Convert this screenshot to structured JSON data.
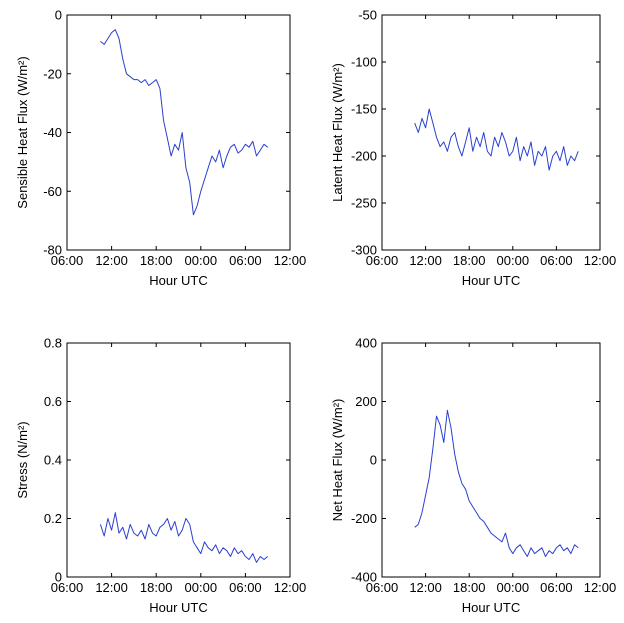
{
  "colors": {
    "series": "#2a40d0",
    "axes": "#000000",
    "background": "#ffffff"
  },
  "chart_data": [
    {
      "type": "line",
      "xlabel": "Hour UTC",
      "ylabel": "Sensible Heat Flux (W/m²)",
      "x_unit": "hours since 06:00 of day 1",
      "xlim": [
        0,
        30
      ],
      "ylim": [
        -80,
        0
      ],
      "xticks": [
        0,
        6,
        12,
        18,
        24,
        30
      ],
      "xtick_labels": [
        "06:00",
        "12:00",
        "18:00",
        "00:00",
        "06:00",
        "12:00"
      ],
      "yticks": [
        0,
        -20,
        -40,
        -60,
        -80
      ],
      "ytick_labels": [
        "0",
        "-20",
        "-40",
        "-60",
        "-80"
      ],
      "grid": false,
      "series": [
        {
          "x": [
            4.5,
            5.0,
            5.5,
            6.0,
            6.5,
            7.0,
            7.5,
            8.0,
            8.5,
            9.0,
            9.5,
            10.0,
            10.5,
            11.0,
            11.5,
            12.0,
            12.5,
            13.0,
            13.5,
            14.0,
            14.5,
            15.0,
            15.5,
            16.0,
            16.5,
            17.0,
            17.5,
            18.0,
            18.5,
            19.0,
            19.5,
            20.0,
            20.5,
            21.0,
            21.5,
            22.0,
            22.5,
            23.0,
            23.5,
            24.0,
            24.5,
            25.0,
            25.5,
            26.0,
            26.5,
            27.0
          ],
          "y": [
            -9,
            -10,
            -8,
            -6,
            -5,
            -8,
            -15,
            -20,
            -21,
            -22,
            -22,
            -23,
            -22,
            -24,
            -23,
            -22,
            -25,
            -36,
            -42,
            -48,
            -44,
            -46,
            -40,
            -52,
            -57,
            -68,
            -65,
            -60,
            -56,
            -52,
            -48,
            -50,
            -46,
            -52,
            -48,
            -45,
            -44,
            -47,
            -46,
            -44,
            -45,
            -43,
            -48,
            -46,
            -44,
            -45
          ]
        }
      ]
    },
    {
      "type": "line",
      "xlabel": "Hour UTC",
      "ylabel": "Latent Heat Flux (W/m²)",
      "x_unit": "hours since 06:00 of day 1",
      "xlim": [
        0,
        30
      ],
      "ylim": [
        -300,
        -50
      ],
      "xticks": [
        0,
        6,
        12,
        18,
        24,
        30
      ],
      "xtick_labels": [
        "06:00",
        "12:00",
        "18:00",
        "00:00",
        "06:00",
        "12:00"
      ],
      "yticks": [
        -50,
        -100,
        -150,
        -200,
        -250,
        -300
      ],
      "ytick_labels": [
        "-50",
        "-100",
        "-150",
        "-200",
        "-250",
        "-300"
      ],
      "grid": false,
      "series": [
        {
          "x": [
            4.5,
            5.0,
            5.5,
            6.0,
            6.5,
            7.0,
            7.5,
            8.0,
            8.5,
            9.0,
            9.5,
            10.0,
            10.5,
            11.0,
            11.5,
            12.0,
            12.5,
            13.0,
            13.5,
            14.0,
            14.5,
            15.0,
            15.5,
            16.0,
            16.5,
            17.0,
            17.5,
            18.0,
            18.5,
            19.0,
            19.5,
            20.0,
            20.5,
            21.0,
            21.5,
            22.0,
            22.5,
            23.0,
            23.5,
            24.0,
            24.5,
            25.0,
            25.5,
            26.0,
            26.5,
            27.0
          ],
          "y": [
            -165,
            -175,
            -160,
            -170,
            -150,
            -165,
            -180,
            -190,
            -185,
            -195,
            -180,
            -175,
            -190,
            -200,
            -185,
            -170,
            -195,
            -180,
            -190,
            -175,
            -195,
            -200,
            -180,
            -190,
            -175,
            -185,
            -200,
            -195,
            -180,
            -205,
            -190,
            -200,
            -185,
            -210,
            -195,
            -200,
            -190,
            -215,
            -200,
            -195,
            -205,
            -190,
            -210,
            -200,
            -205,
            -195
          ]
        }
      ]
    },
    {
      "type": "line",
      "xlabel": "Hour UTC",
      "ylabel": "Stress (N/m²)",
      "x_unit": "hours since 06:00 of day 1",
      "xlim": [
        0,
        30
      ],
      "ylim": [
        0,
        0.8
      ],
      "xticks": [
        0,
        6,
        12,
        18,
        24,
        30
      ],
      "xtick_labels": [
        "06:00",
        "12:00",
        "18:00",
        "00:00",
        "06:00",
        "12:00"
      ],
      "yticks": [
        0,
        0.2,
        0.4,
        0.6,
        0.8
      ],
      "ytick_labels": [
        "0",
        "0.2",
        "0.4",
        "0.6",
        "0.8"
      ],
      "grid": false,
      "series": [
        {
          "x": [
            4.5,
            5.0,
            5.5,
            6.0,
            6.5,
            7.0,
            7.5,
            8.0,
            8.5,
            9.0,
            9.5,
            10.0,
            10.5,
            11.0,
            11.5,
            12.0,
            12.5,
            13.0,
            13.5,
            14.0,
            14.5,
            15.0,
            15.5,
            16.0,
            16.5,
            17.0,
            17.5,
            18.0,
            18.5,
            19.0,
            19.5,
            20.0,
            20.5,
            21.0,
            21.5,
            22.0,
            22.5,
            23.0,
            23.5,
            24.0,
            24.5,
            25.0,
            25.5,
            26.0,
            26.5,
            27.0
          ],
          "y": [
            0.18,
            0.14,
            0.2,
            0.16,
            0.22,
            0.15,
            0.17,
            0.13,
            0.18,
            0.15,
            0.14,
            0.16,
            0.13,
            0.18,
            0.15,
            0.14,
            0.17,
            0.18,
            0.2,
            0.16,
            0.19,
            0.14,
            0.16,
            0.2,
            0.18,
            0.12,
            0.1,
            0.08,
            0.12,
            0.1,
            0.09,
            0.11,
            0.08,
            0.1,
            0.09,
            0.07,
            0.1,
            0.08,
            0.09,
            0.07,
            0.06,
            0.08,
            0.05,
            0.07,
            0.06,
            0.07
          ]
        }
      ]
    },
    {
      "type": "line",
      "xlabel": "Hour UTC",
      "ylabel": "Net Heat Flux (W/m²)",
      "x_unit": "hours since 06:00 of day 1",
      "xlim": [
        0,
        30
      ],
      "ylim": [
        -400,
        400
      ],
      "xticks": [
        0,
        6,
        12,
        18,
        24,
        30
      ],
      "xtick_labels": [
        "06:00",
        "12:00",
        "18:00",
        "00:00",
        "06:00",
        "12:00"
      ],
      "yticks": [
        400,
        200,
        0,
        -200,
        -400
      ],
      "ytick_labels": [
        "400",
        "200",
        "0",
        "-200",
        "-400"
      ],
      "grid": false,
      "series": [
        {
          "x": [
            4.5,
            5.0,
            5.5,
            6.0,
            6.5,
            7.0,
            7.5,
            8.0,
            8.5,
            9.0,
            9.5,
            10.0,
            10.5,
            11.0,
            11.5,
            12.0,
            12.5,
            13.0,
            13.5,
            14.0,
            14.5,
            15.0,
            15.5,
            16.0,
            16.5,
            17.0,
            17.5,
            18.0,
            18.5,
            19.0,
            19.5,
            20.0,
            20.5,
            21.0,
            21.5,
            22.0,
            22.5,
            23.0,
            23.5,
            24.0,
            24.5,
            25.0,
            25.5,
            26.0,
            26.5,
            27.0
          ],
          "y": [
            -230,
            -220,
            -180,
            -120,
            -60,
            40,
            150,
            120,
            60,
            170,
            110,
            20,
            -40,
            -80,
            -100,
            -140,
            -160,
            -180,
            -200,
            -210,
            -230,
            -250,
            -260,
            -270,
            -280,
            -250,
            -300,
            -320,
            -300,
            -290,
            -310,
            -330,
            -300,
            -320,
            -310,
            -300,
            -330,
            -310,
            -320,
            -300,
            -290,
            -310,
            -300,
            -320,
            -290,
            -300
          ]
        }
      ]
    }
  ]
}
